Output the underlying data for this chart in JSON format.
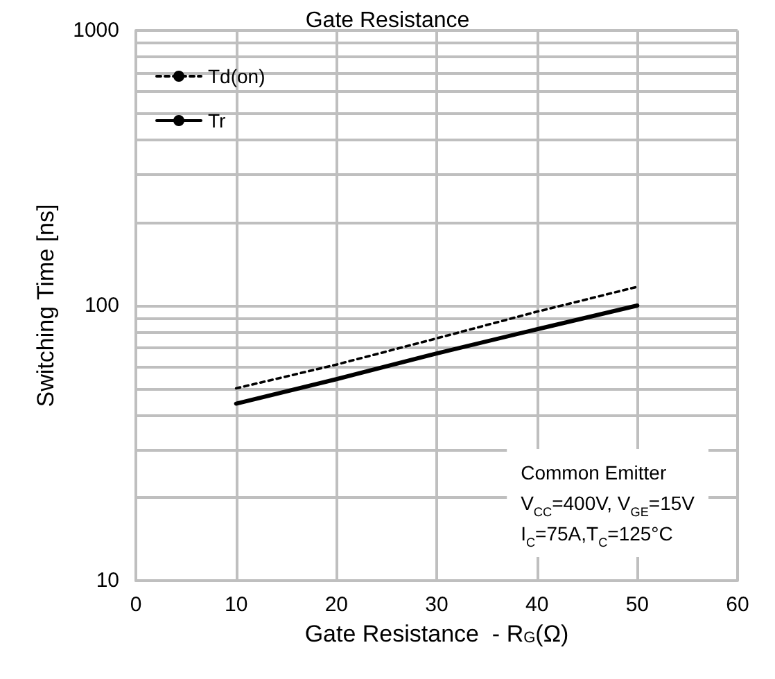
{
  "chart_data": {
    "type": "line",
    "title": "Gate Resistance",
    "xlabel": "Gate Resistance  - R$_{G}$(Ω)",
    "ylabel": "Switching Time [ns]",
    "x": [
      10,
      20,
      30,
      40,
      50
    ],
    "series": [
      {
        "name": "Td(on)",
        "color": "#000000",
        "line_style": "dashed",
        "values": [
          50,
          61,
          76,
          95,
          117
        ]
      },
      {
        "name": "Tr",
        "color": "#000000",
        "line_style": "solid",
        "values": [
          44,
          54,
          67,
          82,
          100
        ]
      }
    ],
    "xlim": [
      0,
      60
    ],
    "xticks": [
      0,
      10,
      20,
      30,
      40,
      50,
      60
    ],
    "ylim": [
      10,
      1000
    ],
    "yticks": [
      10,
      100,
      1000
    ],
    "log": "y",
    "grid": true,
    "legend": "top left",
    "marker": "none",
    "annotations": [
      "Common Emitter",
      "V$_{CC}$=400V, V$_{GE}$=15V",
      "I$_{C}$=75A,T$_{C}$=125°C"
    ]
  }
}
